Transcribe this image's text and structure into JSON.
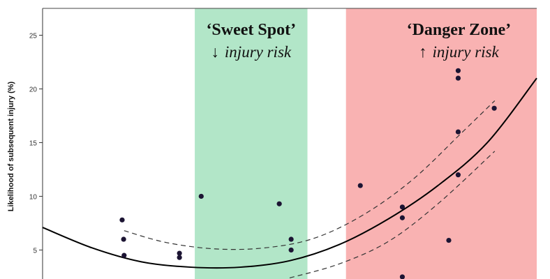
{
  "chart_data": {
    "type": "scatter",
    "title": "",
    "xlabel": "",
    "ylabel": "Likelihood of subsequent injury (%)",
    "xlim": [
      0,
      100
    ],
    "ylim": [
      2.3,
      27.5
    ],
    "y_ticks": [
      5,
      10,
      15,
      20,
      25
    ],
    "y_tick_labels": [
      "5",
      "10",
      "15",
      "20",
      "25"
    ],
    "grid": false,
    "colors": {
      "sweet_spot": "#b2e6c8",
      "danger_zone": "#f9b2b2",
      "points": "#1c1433",
      "fit_line": "#000000",
      "ci_line": "#333333"
    },
    "zones": [
      {
        "name": "sweet-spot",
        "x_start": 30.8,
        "x_end": 53.6,
        "title": "‘Sweet Spot’",
        "arrow": "↓",
        "subtitle": "injury risk"
      },
      {
        "name": "danger-zone",
        "x_start": 61.4,
        "x_end": 100,
        "title": "‘Danger Zone’",
        "arrow": "↑",
        "subtitle": "injury risk"
      }
    ],
    "points": [
      {
        "x": 16.1,
        "y": 7.8
      },
      {
        "x": 16.4,
        "y": 6.0
      },
      {
        "x": 16.5,
        "y": 4.5
      },
      {
        "x": 27.7,
        "y": 4.7
      },
      {
        "x": 27.7,
        "y": 4.3
      },
      {
        "x": 32.1,
        "y": 10.0
      },
      {
        "x": 47.9,
        "y": 9.3
      },
      {
        "x": 50.3,
        "y": 6.0
      },
      {
        "x": 50.3,
        "y": 5.0
      },
      {
        "x": 64.3,
        "y": 11.0
      },
      {
        "x": 72.8,
        "y": 9.0
      },
      {
        "x": 72.8,
        "y": 8.0
      },
      {
        "x": 72.8,
        "y": 2.5
      },
      {
        "x": 82.2,
        "y": 5.9
      },
      {
        "x": 84.1,
        "y": 21.7
      },
      {
        "x": 84.1,
        "y": 21.0
      },
      {
        "x": 84.1,
        "y": 16.0
      },
      {
        "x": 84.1,
        "y": 12.0
      },
      {
        "x": 91.4,
        "y": 18.2
      }
    ],
    "fit": {
      "x": [
        0,
        10,
        20,
        30,
        40,
        50,
        60,
        70,
        80,
        90,
        100
      ],
      "y": [
        7.1,
        5.2,
        3.9,
        3.4,
        3.4,
        4.0,
        5.5,
        7.9,
        11.0,
        15.0,
        21.0
      ]
    },
    "ci_upper": {
      "x": [
        16.5,
        25,
        35,
        45,
        55,
        65,
        75,
        85,
        91.5
      ],
      "y": [
        6.8,
        5.7,
        5.1,
        5.2,
        6.1,
        8.3,
        11.6,
        16.0,
        18.9
      ]
    },
    "ci_lower": {
      "x": [
        50,
        60,
        70,
        80,
        91.5
      ],
      "y": [
        2.4,
        3.7,
        5.8,
        9.3,
        14.2
      ]
    }
  }
}
